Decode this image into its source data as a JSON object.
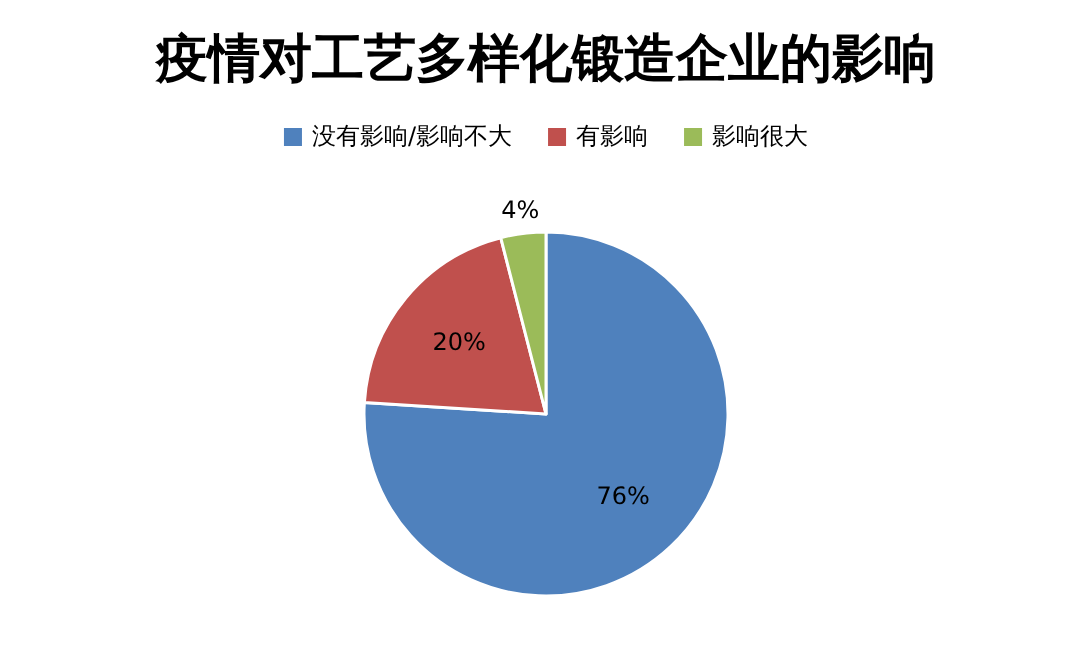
{
  "chart_data": {
    "type": "pie",
    "title": "疫情对工艺多样化锻造企业的影响",
    "categories": [
      "没有影响/影响不大",
      "有影响",
      "影响很大"
    ],
    "values": [
      76,
      20,
      4
    ],
    "colors": [
      "#4f81bd",
      "#c0504d",
      "#9bbb59"
    ],
    "value_labels": [
      "76%",
      "20%",
      "4%"
    ],
    "legend": "top"
  }
}
